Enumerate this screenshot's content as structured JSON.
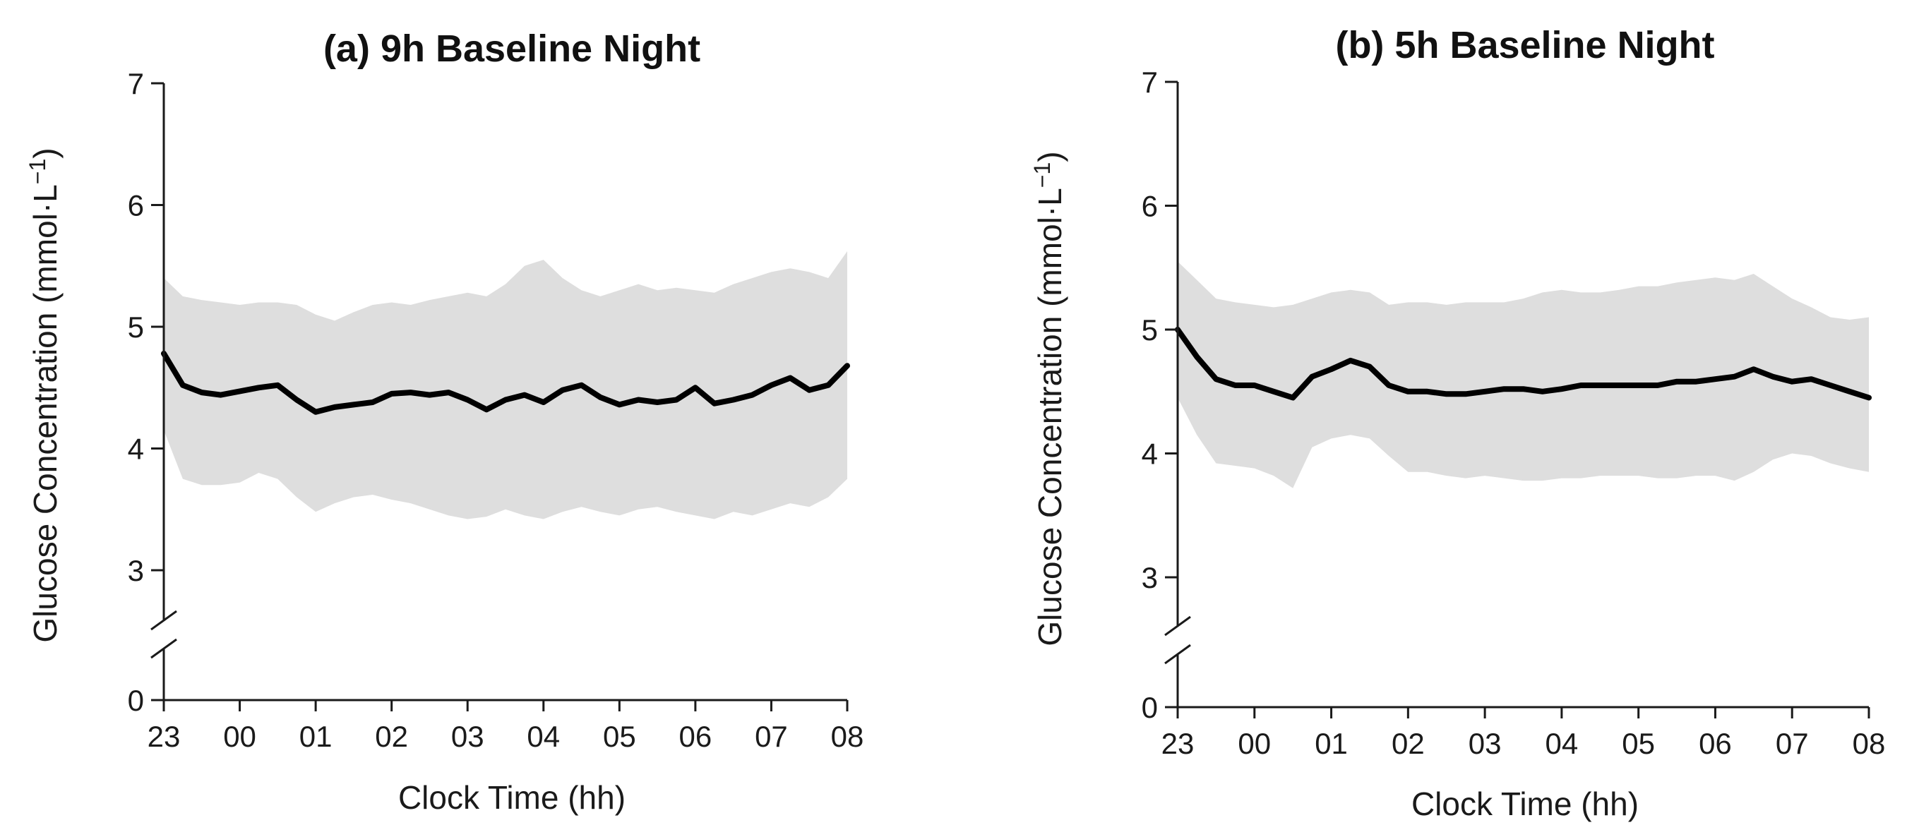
{
  "chart_data": [
    {
      "type": "line",
      "title": "(a) 9h Baseline Night",
      "xlabel": "Clock Time (hh)",
      "ylabel": "Glucose Concentration (mmol·L",
      "ylabel_sup": "−1",
      "ylabel_close": ")",
      "y_break": true,
      "ylim": [
        0,
        7
      ],
      "y_ticks": [
        "0",
        "3",
        "4",
        "5",
        "6",
        "7"
      ],
      "x_ticks": [
        "23",
        "00",
        "01",
        "02",
        "03",
        "04",
        "05",
        "06",
        "07",
        "08"
      ],
      "grid": false,
      "series": [
        {
          "x": [
            0,
            0.25,
            0.5,
            0.75,
            1,
            1.25,
            1.5,
            1.75,
            2,
            2.25,
            2.5,
            2.75,
            3,
            3.25,
            3.5,
            3.75,
            4,
            4.25,
            4.5,
            4.75,
            5,
            5.25,
            5.5,
            5.75,
            6,
            6.25,
            6.5,
            6.75,
            7,
            7.25,
            7.5,
            7.75,
            8,
            8.25,
            8.5,
            8.75,
            9
          ],
          "mean": [
            4.78,
            4.52,
            4.46,
            4.44,
            4.47,
            4.5,
            4.52,
            4.4,
            4.3,
            4.34,
            4.36,
            4.38,
            4.45,
            4.46,
            4.44,
            4.46,
            4.4,
            4.32,
            4.4,
            4.44,
            4.38,
            4.48,
            4.52,
            4.42,
            4.36,
            4.4,
            4.38,
            4.4,
            4.5,
            4.37,
            4.4,
            4.44,
            4.52,
            4.58,
            4.48,
            4.52,
            4.68
          ],
          "upper": [
            5.4,
            5.25,
            5.22,
            5.2,
            5.18,
            5.2,
            5.2,
            5.18,
            5.1,
            5.05,
            5.12,
            5.18,
            5.2,
            5.18,
            5.22,
            5.25,
            5.28,
            5.25,
            5.35,
            5.5,
            5.55,
            5.4,
            5.3,
            5.25,
            5.3,
            5.35,
            5.3,
            5.32,
            5.3,
            5.28,
            5.35,
            5.4,
            5.45,
            5.48,
            5.45,
            5.4,
            5.62
          ],
          "lower": [
            4.15,
            3.75,
            3.7,
            3.7,
            3.72,
            3.8,
            3.75,
            3.6,
            3.48,
            3.55,
            3.6,
            3.62,
            3.58,
            3.55,
            3.5,
            3.45,
            3.42,
            3.44,
            3.5,
            3.45,
            3.42,
            3.48,
            3.52,
            3.48,
            3.45,
            3.5,
            3.52,
            3.48,
            3.45,
            3.42,
            3.48,
            3.45,
            3.5,
            3.55,
            3.52,
            3.6,
            3.75
          ]
        }
      ]
    },
    {
      "type": "line",
      "title": "(b) 5h Baseline Night",
      "xlabel": "Clock Time (hh)",
      "ylabel": "Glucose Concentration (mmol·L",
      "ylabel_sup": "−1",
      "ylabel_close": ")",
      "y_break": true,
      "ylim": [
        0,
        7
      ],
      "y_ticks": [
        "0",
        "3",
        "4",
        "5",
        "6",
        "7"
      ],
      "x_ticks": [
        "23",
        "00",
        "01",
        "02",
        "03",
        "04",
        "05",
        "06",
        "07",
        "08"
      ],
      "grid": false,
      "series": [
        {
          "x": [
            0,
            0.25,
            0.5,
            0.75,
            1,
            1.25,
            1.5,
            1.75,
            2,
            2.25,
            2.5,
            2.75,
            3,
            3.25,
            3.5,
            3.75,
            4,
            4.25,
            4.5,
            4.75,
            5,
            5.25,
            5.5,
            5.75,
            6,
            6.25,
            6.5,
            6.75,
            7,
            7.25,
            7.5,
            7.75,
            8,
            8.25,
            8.5,
            8.75,
            9
          ],
          "mean": [
            5.0,
            4.78,
            4.6,
            4.55,
            4.55,
            4.5,
            4.45,
            4.62,
            4.68,
            4.75,
            4.7,
            4.55,
            4.5,
            4.5,
            4.48,
            4.48,
            4.5,
            4.52,
            4.52,
            4.5,
            4.52,
            4.55,
            4.55,
            4.55,
            4.55,
            4.55,
            4.58,
            4.58,
            4.6,
            4.62,
            4.68,
            4.62,
            4.58,
            4.6,
            4.55,
            4.5,
            4.45
          ],
          "upper": [
            5.55,
            5.4,
            5.25,
            5.22,
            5.2,
            5.18,
            5.2,
            5.25,
            5.3,
            5.32,
            5.3,
            5.2,
            5.22,
            5.22,
            5.2,
            5.22,
            5.22,
            5.22,
            5.25,
            5.3,
            5.32,
            5.3,
            5.3,
            5.32,
            5.35,
            5.35,
            5.38,
            5.4,
            5.42,
            5.4,
            5.45,
            5.35,
            5.25,
            5.18,
            5.1,
            5.08,
            5.1
          ],
          "lower": [
            4.45,
            4.15,
            3.92,
            3.9,
            3.88,
            3.82,
            3.72,
            4.05,
            4.12,
            4.15,
            4.12,
            3.98,
            3.85,
            3.85,
            3.82,
            3.8,
            3.82,
            3.8,
            3.78,
            3.78,
            3.8,
            3.8,
            3.82,
            3.82,
            3.82,
            3.8,
            3.8,
            3.82,
            3.82,
            3.78,
            3.85,
            3.95,
            4.0,
            3.98,
            3.92,
            3.88,
            3.85
          ]
        }
      ]
    }
  ]
}
